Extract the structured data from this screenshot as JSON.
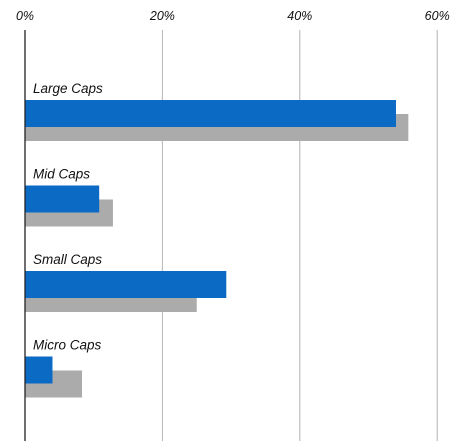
{
  "chart_data": {
    "type": "bar",
    "orientation": "horizontal",
    "categories": [
      "Large Caps",
      "Mid Caps",
      "Small Caps",
      "Micro Caps"
    ],
    "series": [
      {
        "color": "#0a6ac4",
        "values": [
          54,
          10.8,
          29.3,
          4
        ]
      },
      {
        "color": "#ababab",
        "values": [
          55.8,
          12.8,
          25,
          8.3
        ]
      }
    ],
    "x_ticks": [
      "0%",
      "20%",
      "40%",
      "60%"
    ],
    "xlim": [
      0,
      60
    ],
    "grid": true,
    "axis_position": "top"
  }
}
